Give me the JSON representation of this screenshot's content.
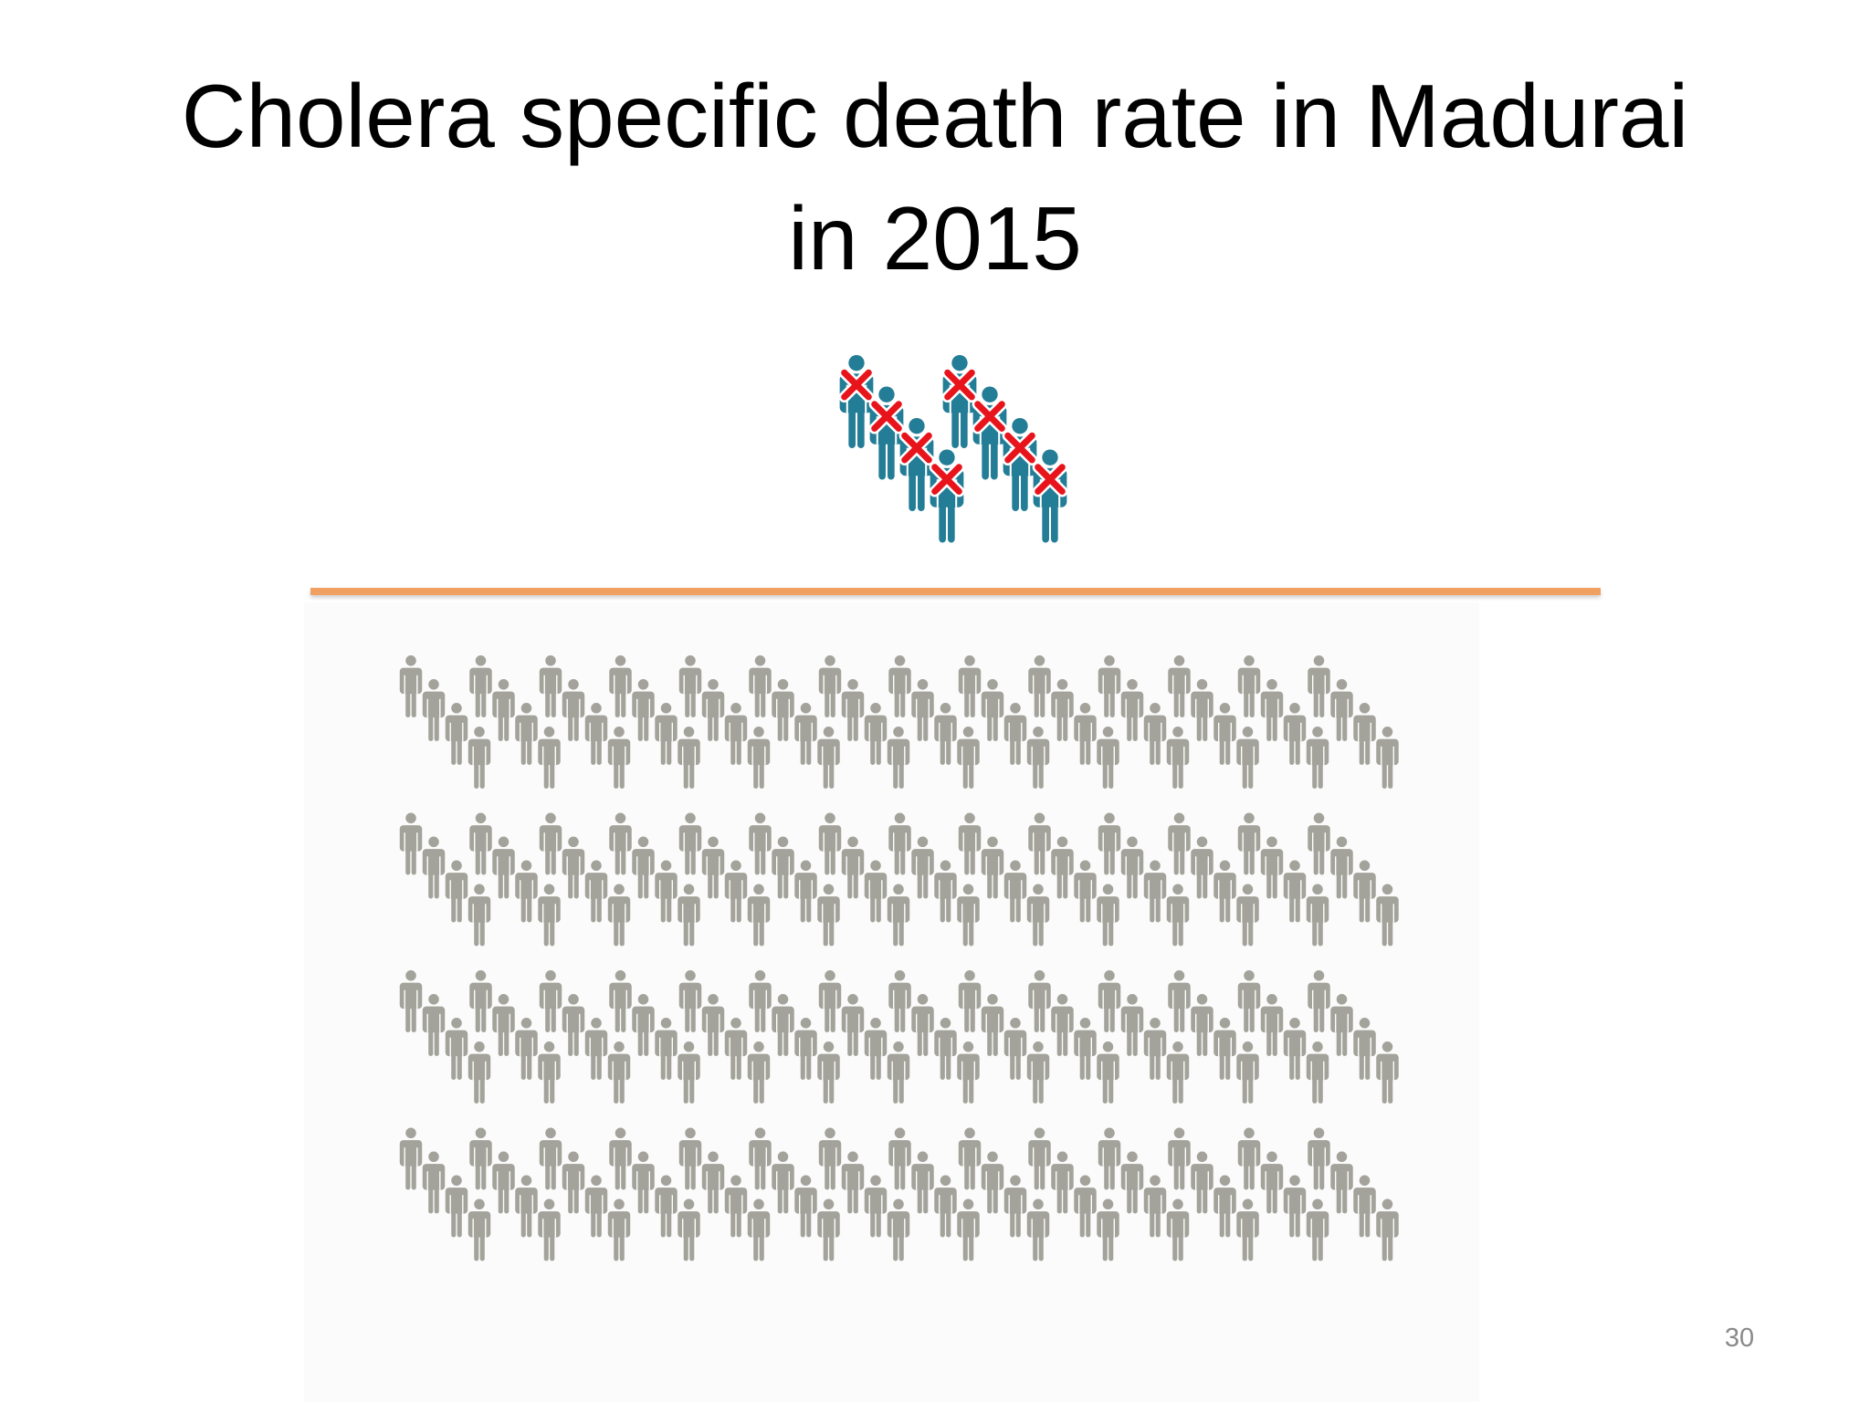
{
  "slide": {
    "title_lines": [
      "Cholera specific death rate in Madurai",
      "in 2015"
    ],
    "page_number": "30"
  }
}
